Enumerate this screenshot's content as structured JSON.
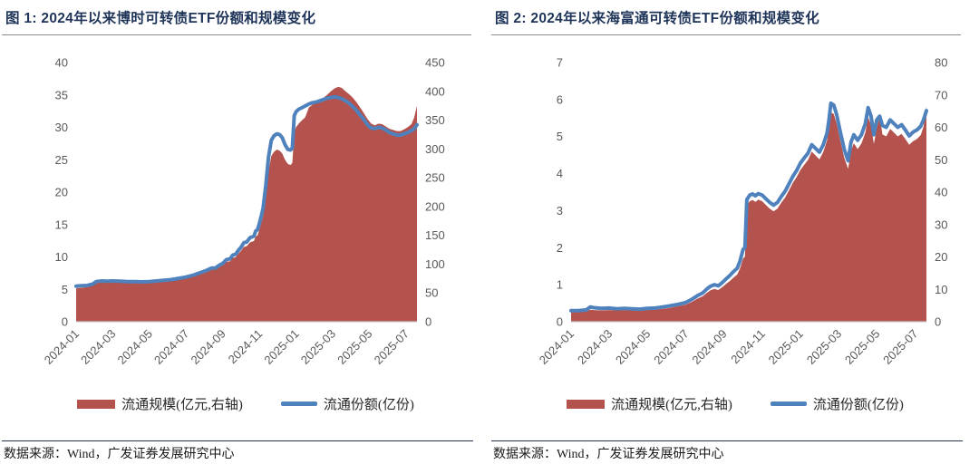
{
  "colors": {
    "area_red": "#B4524D",
    "line_blue": "#4F81BD",
    "title_navy": "#1F3459",
    "axis_text_gray": "#595959",
    "axis_line_gray": "#C9C9C9",
    "title_rule_gray": "#8C8C8C",
    "source_rule_navy": "#26365B"
  },
  "chart_data": [
    {
      "id": "figure-1",
      "type": "area-line-combo",
      "title": "图 1: 2024年以来博时可转债ETF份额和规模变化",
      "source_note": "数据来源：Wind，广发证券发展研究中心",
      "x_tick_labels": [
        "2024-01",
        "2024-03",
        "2024-05",
        "2024-07",
        "2024-09",
        "2024-11",
        "2025-01",
        "2025-03",
        "2025-05",
        "2025-07"
      ],
      "x_tick_interval_months": 2,
      "x_range_months": [
        0,
        18.6
      ],
      "left_axis": {
        "min": 0,
        "max": 40,
        "ticks": [
          0,
          5,
          10,
          15,
          20,
          25,
          30,
          35,
          40
        ]
      },
      "right_axis": {
        "min": 0,
        "max": 450,
        "ticks": [
          0,
          50,
          100,
          150,
          200,
          250,
          300,
          350,
          400,
          450
        ]
      },
      "legend": [
        {
          "label": "流通规模(亿元,右轴)",
          "marker": "area",
          "color": "#B4524D"
        },
        {
          "label": "流通份额(亿份)",
          "marker": "line",
          "color": "#4F81BD"
        }
      ],
      "series": [
        {
          "name": "流通规模(亿元,右轴)",
          "type": "area",
          "axis": "right",
          "color": "#B4524D",
          "x": [
            0,
            0.3,
            0.6,
            0.9,
            1.1,
            1.4,
            1.7,
            2.0,
            2.4,
            2.8,
            3.2,
            3.6,
            4.0,
            4.4,
            4.8,
            5.2,
            5.6,
            6.0,
            6.4,
            6.8,
            7.1,
            7.4,
            7.6,
            7.8,
            8.0,
            8.2,
            8.4,
            8.55,
            8.7,
            8.85,
            9.0,
            9.15,
            9.3,
            9.5,
            9.7,
            9.8,
            9.9,
            10.0,
            10.1,
            10.2,
            10.35,
            10.5,
            10.65,
            10.8,
            10.95,
            11.1,
            11.25,
            11.4,
            11.55,
            11.7,
            11.8,
            11.9,
            12.0,
            12.15,
            12.3,
            12.5,
            12.7,
            12.9,
            13.1,
            13.3,
            13.5,
            13.7,
            13.9,
            14.1,
            14.3,
            14.5,
            14.7,
            14.9,
            15.1,
            15.3,
            15.5,
            15.7,
            15.9,
            16.1,
            16.3,
            16.5,
            16.7,
            16.9,
            17.1,
            17.3,
            17.5,
            17.7,
            17.9,
            18.1,
            18.3,
            18.45,
            18.6
          ],
          "values": [
            58,
            59,
            60,
            63,
            67,
            70,
            69,
            70,
            69,
            69,
            68,
            68,
            69,
            70,
            71,
            73,
            75,
            77,
            80,
            84,
            87,
            91,
            91,
            95,
            98,
            104,
            105,
            111,
            112,
            118,
            123,
            130,
            131,
            138,
            140,
            148,
            150,
            160,
            171,
            183,
            218,
            262,
            288,
            295,
            299,
            297,
            292,
            281,
            274,
            272,
            276,
            330,
            338,
            344,
            349,
            355,
            372,
            377,
            380,
            384,
            389,
            394,
            400,
            405,
            408,
            406,
            400,
            395,
            389,
            381,
            372,
            362,
            352,
            344,
            341,
            344,
            343,
            339,
            335,
            333,
            331,
            331,
            334,
            338,
            343,
            355,
            375
          ]
        },
        {
          "name": "流通份额(亿份)",
          "type": "line",
          "axis": "left",
          "color": "#4F81BD",
          "x": [
            0,
            0.3,
            0.6,
            0.9,
            1.1,
            1.4,
            1.7,
            2.0,
            2.4,
            2.8,
            3.2,
            3.6,
            4.0,
            4.4,
            4.8,
            5.2,
            5.6,
            6.0,
            6.4,
            6.8,
            7.1,
            7.4,
            7.6,
            7.8,
            8.0,
            8.2,
            8.4,
            8.55,
            8.7,
            8.85,
            9.0,
            9.15,
            9.3,
            9.5,
            9.7,
            9.8,
            9.9,
            10.0,
            10.1,
            10.2,
            10.35,
            10.5,
            10.65,
            10.8,
            10.95,
            11.1,
            11.25,
            11.4,
            11.55,
            11.7,
            11.8,
            11.9,
            12.0,
            12.15,
            12.3,
            12.5,
            12.7,
            12.9,
            13.1,
            13.3,
            13.5,
            13.7,
            13.9,
            14.1,
            14.3,
            14.5,
            14.7,
            14.9,
            15.1,
            15.3,
            15.5,
            15.7,
            15.9,
            16.1,
            16.3,
            16.5,
            16.7,
            16.9,
            17.1,
            17.3,
            17.5,
            17.7,
            17.9,
            18.1,
            18.3,
            18.45,
            18.6
          ],
          "values": [
            5.5,
            5.55,
            5.6,
            5.8,
            6.2,
            6.3,
            6.25,
            6.3,
            6.25,
            6.2,
            6.2,
            6.15,
            6.2,
            6.3,
            6.4,
            6.5,
            6.7,
            6.9,
            7.2,
            7.6,
            7.9,
            8.3,
            8.3,
            8.7,
            9.0,
            9.6,
            9.7,
            10.3,
            10.4,
            11.0,
            11.5,
            12.2,
            12.3,
            13.0,
            13.2,
            14.0,
            14.2,
            15.2,
            16.3,
            17.5,
            21.0,
            25.5,
            28.0,
            28.7,
            29.0,
            28.9,
            28.4,
            27.3,
            26.6,
            26.5,
            26.8,
            31.8,
            32.4,
            32.8,
            33.0,
            33.3,
            33.6,
            33.8,
            33.9,
            34.1,
            34.3,
            34.5,
            34.6,
            34.7,
            34.6,
            34.4,
            34.1,
            33.7,
            33.2,
            32.6,
            31.9,
            31.2,
            30.4,
            29.9,
            29.8,
            30.0,
            29.9,
            29.6,
            29.2,
            29.0,
            28.8,
            28.8,
            29.0,
            29.2,
            29.5,
            29.8,
            30.4
          ]
        }
      ]
    },
    {
      "id": "figure-2",
      "type": "area-line-combo",
      "title": "图 2: 2024年以来海富通可转债ETF份额和规模变化",
      "source_note": "数据来源：Wind，广发证券发展研究中心",
      "x_tick_labels": [
        "2024-01",
        "2024-03",
        "2024-05",
        "2024-07",
        "2024-09",
        "2024-11",
        "2025-01",
        "2025-03",
        "2025-05",
        "2025-07"
      ],
      "x_tick_interval_months": 2,
      "x_range_months": [
        0,
        18.6
      ],
      "left_axis": {
        "min": 0,
        "max": 7,
        "ticks": [
          0,
          1,
          2,
          3,
          4,
          5,
          6,
          7
        ]
      },
      "right_axis": {
        "min": 0,
        "max": 80,
        "ticks": [
          0,
          10,
          20,
          30,
          40,
          50,
          60,
          70,
          80
        ]
      },
      "legend": [
        {
          "label": "流通规模(亿元,右轴)",
          "marker": "area",
          "color": "#B4524D"
        },
        {
          "label": "流通份额(亿份)",
          "marker": "line",
          "color": "#4F81BD"
        }
      ],
      "series": [
        {
          "name": "流通规模(亿元,右轴)",
          "type": "area",
          "axis": "right",
          "color": "#B4524D",
          "x": [
            0,
            0.4,
            0.8,
            1.0,
            1.2,
            1.6,
            2.0,
            2.4,
            2.8,
            3.2,
            3.6,
            4.0,
            4.4,
            4.8,
            5.2,
            5.6,
            6.0,
            6.3,
            6.6,
            6.9,
            7.1,
            7.3,
            7.5,
            7.7,
            7.9,
            8.1,
            8.3,
            8.5,
            8.7,
            8.85,
            9.0,
            9.1,
            9.2,
            9.35,
            9.5,
            9.65,
            9.8,
            10.0,
            10.2,
            10.4,
            10.6,
            10.8,
            11.0,
            11.2,
            11.4,
            11.6,
            11.8,
            12.0,
            12.2,
            12.4,
            12.6,
            12.8,
            13.0,
            13.2,
            13.4,
            13.5,
            13.6,
            13.75,
            13.9,
            14.1,
            14.3,
            14.5,
            14.65,
            14.8,
            15.0,
            15.2,
            15.4,
            15.55,
            15.7,
            15.85,
            16.0,
            16.15,
            16.3,
            16.5,
            16.7,
            16.9,
            17.1,
            17.3,
            17.5,
            17.7,
            17.9,
            18.1,
            18.3,
            18.45,
            18.6
          ],
          "values": [
            3.0,
            3.0,
            3.2,
            3.7,
            3.6,
            3.5,
            3.6,
            3.5,
            3.6,
            3.5,
            3.4,
            3.6,
            3.7,
            4.0,
            4.3,
            4.8,
            5.3,
            6.1,
            7.1,
            7.9,
            8.9,
            9.7,
            10.1,
            9.8,
            10.6,
            11.6,
            12.5,
            13.6,
            14.6,
            16.6,
            19.5,
            20.1,
            35.8,
            37.2,
            37.6,
            37.0,
            37.7,
            37.2,
            36.0,
            34.9,
            34.1,
            34.9,
            36.7,
            38.3,
            40.5,
            42.8,
            44.6,
            46.8,
            48.4,
            49.9,
            52.5,
            51.3,
            50.1,
            52.4,
            56.0,
            59.8,
            64.6,
            64.1,
            61.2,
            55.6,
            50.6,
            47.2,
            52.8,
            55.1,
            53.3,
            55.0,
            58.4,
            63.2,
            60.6,
            54.9,
            59.6,
            63.5,
            57.8,
            57.2,
            59.5,
            58.4,
            57.2,
            58.0,
            56.4,
            54.6,
            55.7,
            56.4,
            57.6,
            60.2,
            66.5
          ]
        },
        {
          "name": "流通份额(亿份)",
          "type": "line",
          "axis": "left",
          "color": "#4F81BD",
          "x": [
            0,
            0.4,
            0.8,
            1.0,
            1.2,
            1.6,
            2.0,
            2.4,
            2.8,
            3.2,
            3.6,
            4.0,
            4.4,
            4.8,
            5.2,
            5.6,
            6.0,
            6.3,
            6.6,
            6.9,
            7.1,
            7.3,
            7.5,
            7.7,
            7.9,
            8.1,
            8.3,
            8.5,
            8.7,
            8.85,
            9.0,
            9.1,
            9.2,
            9.35,
            9.5,
            9.65,
            9.8,
            10.0,
            10.2,
            10.4,
            10.6,
            10.8,
            11.0,
            11.2,
            11.4,
            11.6,
            11.8,
            12.0,
            12.2,
            12.4,
            12.6,
            12.8,
            13.0,
            13.2,
            13.4,
            13.5,
            13.6,
            13.75,
            13.9,
            14.1,
            14.3,
            14.5,
            14.65,
            14.8,
            15.0,
            15.2,
            15.4,
            15.55,
            15.7,
            15.85,
            16.0,
            16.15,
            16.3,
            16.5,
            16.7,
            16.9,
            17.1,
            17.3,
            17.5,
            17.7,
            17.9,
            18.1,
            18.3,
            18.45,
            18.6
          ],
          "values": [
            0.3,
            0.3,
            0.32,
            0.4,
            0.38,
            0.36,
            0.37,
            0.35,
            0.36,
            0.35,
            0.34,
            0.36,
            0.37,
            0.4,
            0.43,
            0.47,
            0.52,
            0.6,
            0.7,
            0.78,
            0.88,
            0.96,
            1.0,
            0.97,
            1.05,
            1.15,
            1.24,
            1.35,
            1.45,
            1.65,
            1.95,
            2.0,
            3.3,
            3.42,
            3.45,
            3.4,
            3.46,
            3.42,
            3.32,
            3.22,
            3.15,
            3.22,
            3.38,
            3.52,
            3.72,
            3.92,
            4.08,
            4.28,
            4.42,
            4.55,
            4.78,
            4.68,
            4.58,
            4.78,
            5.1,
            5.45,
            5.9,
            5.85,
            5.6,
            5.1,
            4.65,
            4.35,
            4.85,
            5.05,
            4.9,
            5.05,
            5.35,
            5.78,
            5.55,
            5.05,
            5.45,
            5.55,
            5.3,
            5.25,
            5.45,
            5.35,
            5.25,
            5.32,
            5.18,
            5.02,
            5.12,
            5.18,
            5.28,
            5.45,
            5.7
          ]
        }
      ]
    }
  ]
}
